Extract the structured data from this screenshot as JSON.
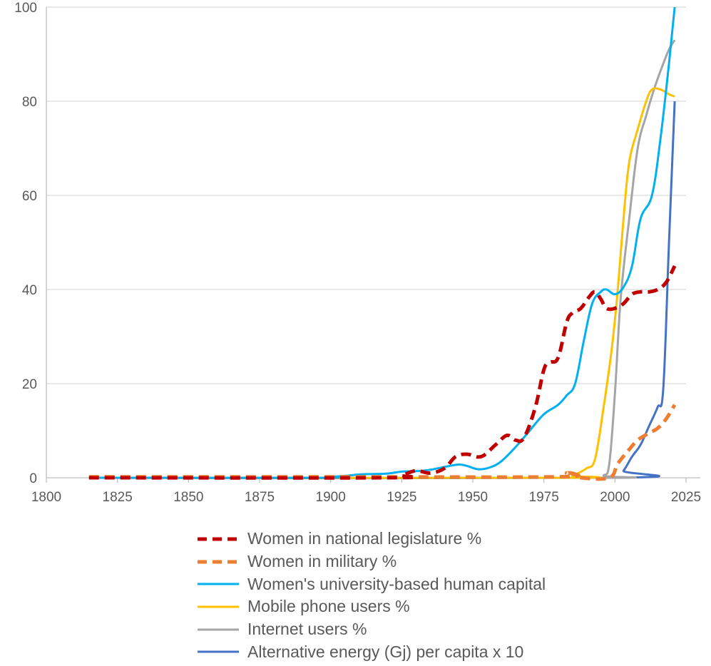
{
  "chart_data": {
    "type": "line",
    "title": "",
    "xlabel": "",
    "ylabel": "",
    "xlim": [
      1800,
      2025
    ],
    "ylim": [
      0,
      100
    ],
    "x_ticks": [
      1800,
      1825,
      1850,
      1875,
      1900,
      1925,
      1950,
      1975,
      2000,
      2025
    ],
    "y_ticks": [
      0,
      20,
      40,
      60,
      80,
      100
    ],
    "grid": "horizontal",
    "legend_position": "bottom",
    "series": [
      {
        "name": "Women in national legislature %",
        "color": "#C00000",
        "style": "dashed-thick",
        "points": [
          [
            1815,
            0
          ],
          [
            1920,
            0
          ],
          [
            1925,
            0.5
          ],
          [
            1930,
            1.5
          ],
          [
            1935,
            1
          ],
          [
            1940,
            2
          ],
          [
            1944,
            4.5
          ],
          [
            1948,
            5
          ],
          [
            1953,
            4.5
          ],
          [
            1958,
            7
          ],
          [
            1962,
            9
          ],
          [
            1965,
            8
          ],
          [
            1968,
            8.5
          ],
          [
            1972,
            15
          ],
          [
            1975,
            23
          ],
          [
            1977,
            24.5
          ],
          [
            1980,
            25.5
          ],
          [
            1983,
            33
          ],
          [
            1985,
            35
          ],
          [
            1988,
            36
          ],
          [
            1991,
            38.5
          ],
          [
            1993,
            39.5
          ],
          [
            1995,
            38
          ],
          [
            1997,
            36
          ],
          [
            2000,
            36
          ],
          [
            2003,
            37
          ],
          [
            2006,
            39
          ],
          [
            2009,
            39.5
          ],
          [
            2012,
            39.5
          ],
          [
            2015,
            40
          ],
          [
            2018,
            41.5
          ],
          [
            2021,
            45
          ]
        ]
      },
      {
        "name": "Women in military %",
        "color": "#ED7D31",
        "style": "dashed-thick",
        "points": [
          [
            1815,
            0.2
          ],
          [
            1900,
            0.2
          ],
          [
            1980,
            0.2
          ],
          [
            1983,
            1
          ],
          [
            1986,
            0.8
          ],
          [
            1988,
            0
          ],
          [
            1998,
            0
          ],
          [
            2001,
            3
          ],
          [
            2005,
            6
          ],
          [
            2008,
            8
          ],
          [
            2012,
            9.5
          ],
          [
            2015,
            10.5
          ],
          [
            2018,
            12.5
          ],
          [
            2021,
            15.5
          ]
        ]
      },
      {
        "name": "Women's university-based human capital",
        "color": "#00B0F0",
        "style": "solid",
        "points": [
          [
            1815,
            0
          ],
          [
            1895,
            0
          ],
          [
            1900,
            0.2
          ],
          [
            1905,
            0.4
          ],
          [
            1910,
            0.7
          ],
          [
            1915,
            0.8
          ],
          [
            1920,
            0.9
          ],
          [
            1925,
            1.3
          ],
          [
            1930,
            1.4
          ],
          [
            1935,
            1.7
          ],
          [
            1940,
            2.3
          ],
          [
            1945,
            2.8
          ],
          [
            1948,
            2.5
          ],
          [
            1952,
            1.8
          ],
          [
            1956,
            2.2
          ],
          [
            1960,
            3.5
          ],
          [
            1965,
            6.5
          ],
          [
            1970,
            10
          ],
          [
            1975,
            13.5
          ],
          [
            1980,
            15.5
          ],
          [
            1983,
            17.5
          ],
          [
            1986,
            20
          ],
          [
            1989,
            29
          ],
          [
            1992,
            37
          ],
          [
            1995,
            39.5
          ],
          [
            1997,
            40
          ],
          [
            2000,
            39
          ],
          [
            2003,
            40.5
          ],
          [
            2006,
            45
          ],
          [
            2009,
            55
          ],
          [
            2013,
            60
          ],
          [
            2016,
            72
          ],
          [
            2019,
            88
          ],
          [
            2021,
            100
          ]
        ]
      },
      {
        "name": "Mobile phone users %",
        "color": "#FFC000",
        "style": "solid",
        "points": [
          [
            1815,
            0
          ],
          [
            1980,
            0
          ],
          [
            1985,
            0.5
          ],
          [
            1990,
            2
          ],
          [
            1993,
            4
          ],
          [
            1996,
            15
          ],
          [
            1999,
            28
          ],
          [
            2001,
            40
          ],
          [
            2003,
            55
          ],
          [
            2005,
            67
          ],
          [
            2008,
            74
          ],
          [
            2011,
            80
          ],
          [
            2013,
            82.5
          ],
          [
            2016,
            82.5
          ],
          [
            2019,
            81.5
          ],
          [
            2021,
            81
          ]
        ]
      },
      {
        "name": "Internet users %",
        "color": "#A5A5A5",
        "style": "solid",
        "points": [
          [
            1815,
            0
          ],
          [
            1992,
            0
          ],
          [
            1996,
            0.5
          ],
          [
            1998,
            3
          ],
          [
            2000,
            18
          ],
          [
            2002,
            38
          ],
          [
            2005,
            55
          ],
          [
            2008,
            70
          ],
          [
            2011,
            77
          ],
          [
            2014,
            83
          ],
          [
            2017,
            88
          ],
          [
            2019,
            91
          ],
          [
            2021,
            93
          ]
        ]
      },
      {
        "name": "Alternative energy (Gj) per capita x 10",
        "color": "#4472C4",
        "style": "solid",
        "points": [
          [
            1815,
            0
          ],
          [
            2000,
            0
          ],
          [
            2003,
            1.5
          ],
          [
            2006,
            4.5
          ],
          [
            2009,
            7
          ],
          [
            2012,
            11
          ],
          [
            2015,
            15
          ],
          [
            2017,
            19
          ],
          [
            2019,
            50
          ],
          [
            2021,
            80
          ]
        ]
      }
    ]
  }
}
